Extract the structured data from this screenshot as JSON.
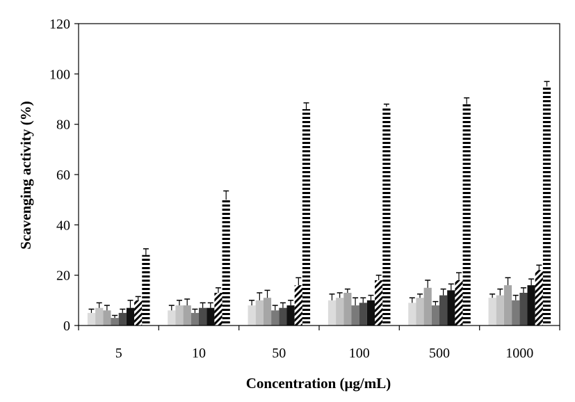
{
  "chart_data": {
    "type": "bar",
    "title": "",
    "xlabel": "Concentration  (μg/mL)",
    "ylabel": "Scavenging  activity  (%)",
    "ylim": [
      0,
      120
    ],
    "yticks": [
      0,
      20,
      40,
      60,
      80,
      100,
      120
    ],
    "grid": false,
    "legend": "none",
    "categories": [
      "5",
      "10",
      "50",
      "100",
      "500",
      "1000"
    ],
    "series": [
      {
        "fill": "#dcdcdc",
        "pattern": "solid",
        "values": [
          5,
          6,
          8,
          10,
          9,
          11
        ],
        "errors": [
          1.5,
          2,
          2,
          2.5,
          2,
          1.5
        ]
      },
      {
        "fill": "#c4c4c4",
        "pattern": "solid",
        "values": [
          7,
          8,
          10,
          11,
          11,
          12
        ],
        "errors": [
          2,
          2,
          3,
          2,
          1.5,
          2.5
        ]
      },
      {
        "fill": "#a6a6a6",
        "pattern": "solid",
        "values": [
          6,
          8,
          11,
          13,
          15,
          16
        ],
        "errors": [
          2,
          2.5,
          3,
          1.5,
          3,
          3
        ]
      },
      {
        "fill": "#7a7a7a",
        "pattern": "solid",
        "values": [
          3,
          5,
          6,
          8,
          8,
          10
        ],
        "errors": [
          1,
          1.5,
          2,
          3,
          1.5,
          2
        ]
      },
      {
        "fill": "#4a4a4a",
        "pattern": "solid",
        "values": [
          5,
          7,
          7,
          9,
          12,
          13
        ],
        "errors": [
          1.5,
          2,
          2,
          2,
          2.5,
          2
        ]
      },
      {
        "fill": "#111111",
        "pattern": "solid",
        "values": [
          7,
          7,
          8,
          10,
          14,
          16
        ],
        "errors": [
          3,
          2,
          2,
          2,
          2.5,
          2.5
        ]
      },
      {
        "fill": "#000000",
        "pattern": "diagonal",
        "values": [
          10,
          13,
          16,
          18,
          18,
          22
        ],
        "errors": [
          1.5,
          2,
          3,
          2,
          3,
          2
        ]
      },
      {
        "fill": "#000000",
        "pattern": "horizontal",
        "values": [
          28,
          50,
          86,
          87,
          88,
          95
        ],
        "errors": [
          2.5,
          3.5,
          2.5,
          1,
          2.5,
          2
        ]
      }
    ]
  }
}
